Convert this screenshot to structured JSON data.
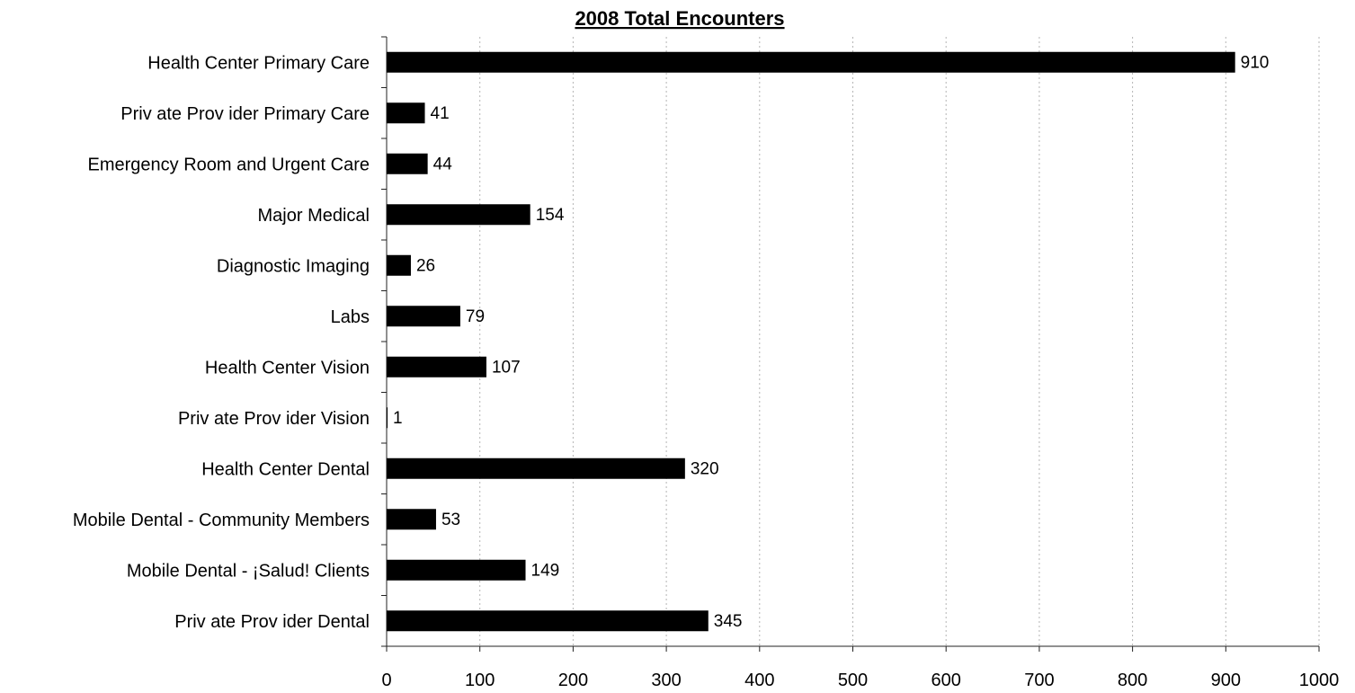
{
  "chart_data": {
    "type": "bar",
    "orientation": "horizontal",
    "title": "2008 Total Encounters",
    "xlabel": "",
    "ylabel": "",
    "categories": [
      "Health Center Primary Care",
      "Priv ate Prov ider Primary Care",
      "Emergency Room and Urgent Care",
      "Major Medical",
      "Diagnostic Imaging",
      "Labs",
      "Health Center Vision",
      "Priv ate Prov ider Vision",
      "Health Center Dental",
      "Mobile Dental - Community Members",
      "Mobile Dental - ¡Salud! Clients",
      "Priv ate Prov ider Dental"
    ],
    "values": [
      910,
      41,
      44,
      154,
      26,
      79,
      107,
      1,
      320,
      53,
      149,
      345
    ],
    "value_labels": [
      "910",
      "41",
      "44",
      "154",
      "26",
      "79",
      "107",
      "1",
      "320",
      "53",
      "149",
      "345"
    ],
    "xlim": [
      0,
      1000
    ],
    "ticks": [
      0,
      100,
      200,
      300,
      400,
      500,
      600,
      700,
      800,
      900,
      1000
    ],
    "tick_labels": [
      "0",
      "100",
      "200",
      "300",
      "400",
      "500",
      "600",
      "700",
      "800",
      "900",
      "1000"
    ],
    "grid": "vertical dashed gridlines",
    "legend": "none",
    "bar_color": "#000000"
  }
}
